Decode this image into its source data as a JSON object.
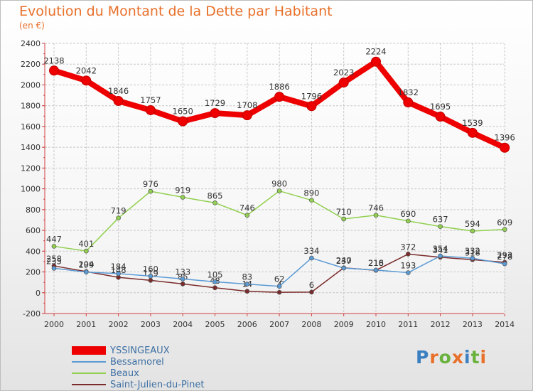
{
  "title": "Evolution du Montant de la Dette par Habitant",
  "subtitle": "(en €)",
  "brand": {
    "letters": [
      "P",
      "r",
      "o",
      "x",
      "i",
      "t",
      "i"
    ],
    "colors": [
      "#3a7fc1",
      "#e8702a",
      "#6ab23e",
      "#e8702a",
      "#3a7fc1",
      "#6ab23e",
      "#e8702a"
    ]
  },
  "chart_data": {
    "type": "line",
    "x": [
      "2000",
      "2001",
      "2002",
      "2003",
      "2004",
      "2005",
      "2006",
      "2007",
      "2008",
      "2009",
      "2010",
      "2011",
      "2012",
      "2013",
      "2014"
    ],
    "ylim": [
      -200,
      2400
    ],
    "yticks": [
      "-200",
      "0",
      "200",
      "400",
      "600",
      "800",
      "1000",
      "1200",
      "1400",
      "1600",
      "1800",
      "2000",
      "2200",
      "2400"
    ],
    "grid": true,
    "legend": "bottom-left",
    "series": [
      {
        "name": "YSSINGEAUX",
        "color": "#ee0000",
        "values": [
          2138,
          2042,
          1846,
          1757,
          1650,
          1729,
          1708,
          1886,
          1796,
          2023,
          2224,
          1832,
          1695,
          1539,
          1396
        ],
        "labels": [
          "2138",
          "2042",
          "1846",
          "1757",
          "1650",
          "1729",
          "1708",
          "1886",
          "1796",
          "2023",
          "2224",
          "1832",
          "1695",
          "1539",
          "1396"
        ]
      },
      {
        "name": "Bessamorel",
        "color": "#5b9bd5",
        "values": [
          235,
          199,
          184,
          160,
          133,
          105,
          83,
          62,
          334,
          237,
          218,
          193,
          354,
          332,
          278
        ],
        "labels": [
          "235",
          "199",
          "184",
          "160",
          "133",
          "105",
          "83",
          "62",
          "334",
          "237",
          "218",
          "193",
          "354",
          "332",
          "278"
        ]
      },
      {
        "name": "Beaux",
        "color": "#92d050",
        "values": [
          447,
          401,
          719,
          976,
          919,
          865,
          746,
          980,
          890,
          710,
          746,
          690,
          637,
          594,
          609
        ],
        "labels": [
          "447",
          "401",
          "719",
          "976",
          "919",
          "865",
          "746",
          "980",
          "890",
          "710",
          "746",
          "690",
          "637",
          "594",
          "609"
        ]
      },
      {
        "name": "Saint-Julien-du-Pinet",
        "color": "#7b2b2b",
        "values": [
          258,
          204,
          148,
          119,
          85,
          48,
          14,
          4,
          6,
          240,
          216,
          372,
          341,
          318,
          293
        ],
        "labels": [
          "258",
          "204",
          "148",
          "119",
          "85",
          "48",
          "14",
          "4",
          "6",
          "240",
          "216",
          "372",
          "341",
          "318",
          "293"
        ]
      }
    ]
  }
}
